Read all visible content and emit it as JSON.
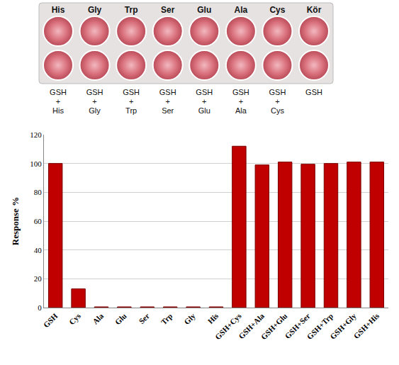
{
  "chart_data": {
    "type": "bar",
    "y_label": "Response %",
    "categories": [
      "GSH",
      "Cys",
      "Ala",
      "Glu",
      "Ser",
      "Trp",
      "Gly",
      "His",
      "GSH+Cys",
      "GSH+Ala",
      "GSH+Glu",
      "GSH+Ser",
      "GSH+Trp",
      "GSH+Gly",
      "GSH+His"
    ],
    "values": [
      100,
      13,
      0.5,
      0.5,
      0.5,
      0.5,
      0.5,
      0.5,
      112,
      99,
      101,
      99.5,
      100,
      101,
      101
    ],
    "color": "#c00000",
    "ylim": [
      0,
      120
    ],
    "yticks": [
      0,
      20,
      40,
      60,
      80,
      100,
      120
    ],
    "grid": true
  },
  "plate": {
    "top_row": [
      "His",
      "Gly",
      "Trp",
      "Ser",
      "Glu",
      "Ala",
      "Cys",
      "Kör"
    ],
    "bottom_row": [
      "GSH + His",
      "GSH + Gly",
      "GSH + Trp",
      "GSH + Ser",
      "GSH + Glu",
      "GSH + Ala",
      "GSH + Cys",
      "GSH"
    ]
  }
}
